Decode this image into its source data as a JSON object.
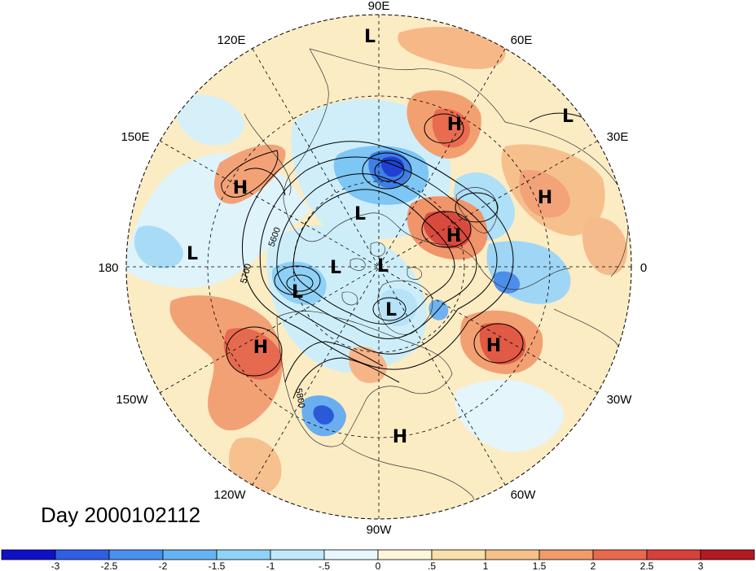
{
  "day_label": "Day 2000102112",
  "longitude_labels": {
    "lon_90e": "90E",
    "lon_60e": "60E",
    "lon_30e": "30E",
    "lon_0": "0",
    "lon_30w": "30W",
    "lon_60w": "60W",
    "lon_90w": "90W",
    "lon_120w": "120W",
    "lon_150w": "150W",
    "lon_180": "180",
    "lon_150e": "150E",
    "lon_120e": "120E"
  },
  "pressure_centers": [
    {
      "type": "L"
    },
    {
      "type": "H"
    },
    {
      "type": "L"
    },
    {
      "type": "H"
    },
    {
      "type": "H"
    },
    {
      "type": "H"
    },
    {
      "type": "L"
    },
    {
      "type": "L"
    },
    {
      "type": "L"
    },
    {
      "type": "L"
    },
    {
      "type": "L"
    },
    {
      "type": "L"
    },
    {
      "type": "H"
    },
    {
      "type": "H"
    },
    {
      "type": "H"
    }
  ],
  "contour_labels": [
    "5600",
    "5700",
    "5800"
  ],
  "colorbar": {
    "colors": [
      "#1010c8",
      "#2f5fe6",
      "#4a90ef",
      "#66b3f3",
      "#8fd3f7",
      "#bfe9fb",
      "#e8f7fd",
      "#fdf6d8",
      "#f9e0a8",
      "#f6c088",
      "#f19a6a",
      "#e9694e",
      "#d8403a",
      "#b51a24"
    ],
    "ticks": [
      "-3",
      "-2.5",
      "-2",
      "-1.5",
      "-1",
      "-.5",
      "0",
      ".5",
      "1",
      "1.5",
      "2",
      "2.5",
      "3"
    ]
  }
}
